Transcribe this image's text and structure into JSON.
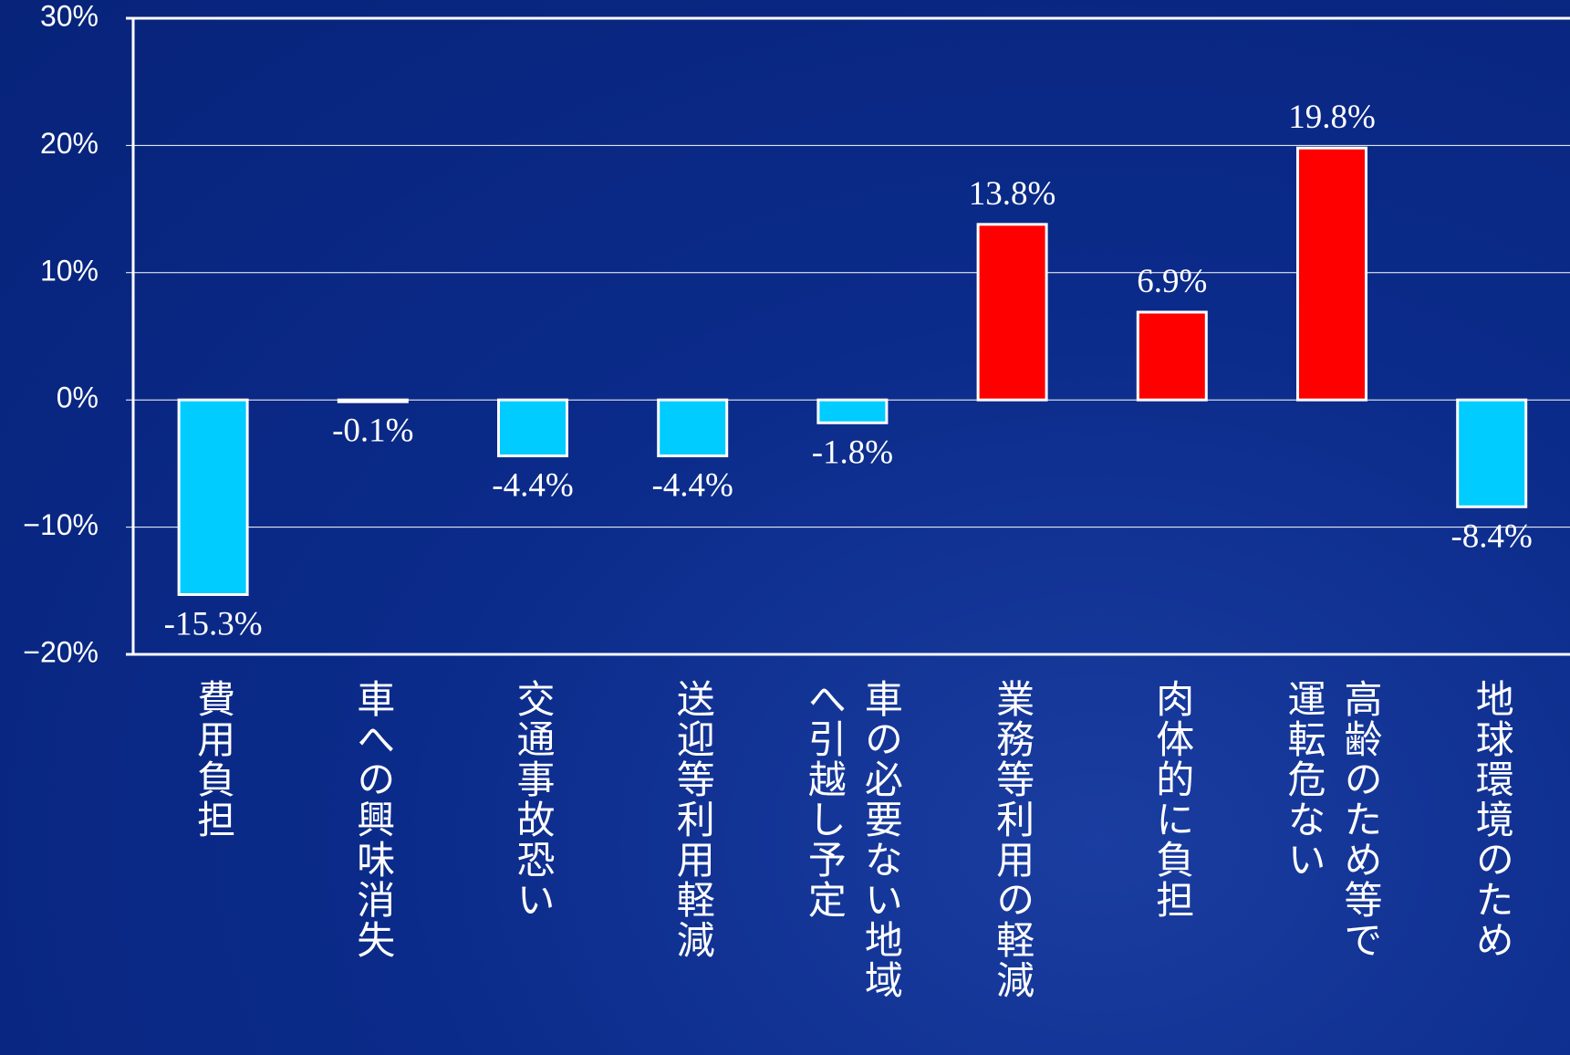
{
  "chart_data": {
    "type": "bar",
    "categories": [
      "費用負担",
      "車への興味消失",
      "交通事故恐い",
      "送迎等利用軽減",
      "車の必要ない地域\nへ引越し予定",
      "業務等利用の軽減",
      "肉体的に負担",
      "高齢のため等で\n運転危ない",
      "地球環境のため"
    ],
    "values": [
      -15.3,
      -0.1,
      -4.4,
      -4.4,
      -1.8,
      13.8,
      6.9,
      19.8,
      -8.4
    ],
    "value_labels": [
      "-15.3%",
      "-0.1%",
      "-4.4%",
      "-4.4%",
      "-1.8%",
      "13.8%",
      "6.9%",
      "19.8%",
      "-8.4%"
    ],
    "positive_color": "#ff0000",
    "negative_color": "#00ccff",
    "ylim": [
      -20,
      30
    ],
    "yticks": [
      {
        "value": -20,
        "label": "−20%"
      },
      {
        "value": -10,
        "label": "−10%"
      },
      {
        "value": 0,
        "label": "0%"
      },
      {
        "value": 10,
        "label": "10%"
      },
      {
        "value": 20,
        "label": "20%"
      },
      {
        "value": 30,
        "label": "30%"
      }
    ],
    "grid": true
  }
}
